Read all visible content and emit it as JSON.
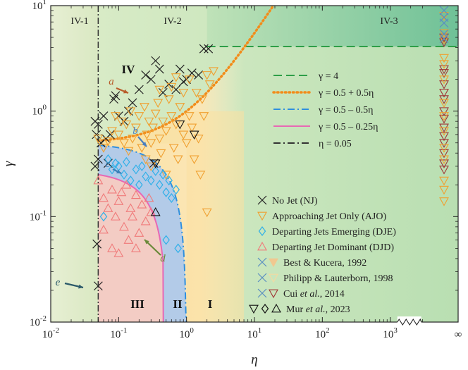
{
  "chart_data": {
    "type": "scatter",
    "xlabel": "η",
    "ylabel": "γ",
    "xscale": "log",
    "yscale": "log",
    "xlim": [
      0.01,
      10000
    ],
    "ylim": [
      0.01,
      10
    ],
    "x_tick_labels": [
      "10^-2",
      "10^-1",
      "10^0",
      "10^1",
      "10^2",
      "10^3",
      "∞"
    ],
    "y_tick_labels": [
      "10^-2",
      "10^-1",
      "10^0",
      "10^1"
    ],
    "axis_break": "between 10^3 and ∞",
    "grid": false,
    "legend_placement": "right",
    "regions": [
      {
        "label": "IV-1",
        "color": "#dfe8c8"
      },
      {
        "label": "IV-2",
        "color": "#d6e9c2"
      },
      {
        "label": "IV-3",
        "color": "#7fc79a"
      },
      {
        "label": "IV",
        "color": "#f7e3a8"
      },
      {
        "label": "III",
        "color": "#f3c9c2"
      },
      {
        "label": "II",
        "color": "#aec8e6"
      },
      {
        "label": "I",
        "color": "#fbe3a6"
      }
    ],
    "boundary_lines": [
      {
        "name": "γ = 4",
        "color": "#2e9e48",
        "style": "dashed"
      },
      {
        "name": "γ = 0.5 + 0.5η",
        "color": "#f28c1a",
        "style": "dotted"
      },
      {
        "name": "γ = 0.5 – 0.5η",
        "color": "#2f8fde",
        "style": "dashdot"
      },
      {
        "name": "γ = 0.5 – 0.25η",
        "color": "#e868b4",
        "style": "solid"
      },
      {
        "name": "η = 0.05",
        "color": "#333333",
        "style": "dashdot"
      }
    ],
    "category_legend": [
      {
        "name": "No Jet (NJ)",
        "marker": "x",
        "color": "#222222"
      },
      {
        "name": "Approaching Jet Only (AJO)",
        "marker": "triangle-down",
        "color": "#f0a030"
      },
      {
        "name": "Departing Jets Emerging (DJE)",
        "marker": "diamond",
        "color": "#30b0e8"
      },
      {
        "name": "Departing Jet Dominant (DJD)",
        "marker": "triangle-up",
        "color": "#f07a7a"
      }
    ],
    "source_legend": [
      {
        "name": "Best & Kucera, 1992",
        "markers": [
          "x",
          "triangle-down-filled"
        ],
        "colors": [
          "#5b8fc0",
          "#f0c890"
        ]
      },
      {
        "name": "Philipp & Lauterborn, 1998",
        "markers": [
          "x",
          "triangle-down"
        ],
        "colors": [
          "#5b8fc0",
          "#f5d9a0"
        ]
      },
      {
        "name": "Cui et al., 2014",
        "markers": [
          "x",
          "triangle-down"
        ],
        "colors": [
          "#5b8fc0",
          "#a03535"
        ]
      },
      {
        "name": "Mur et al., 2023",
        "markers": [
          "triangle-down",
          "diamond",
          "triangle-up"
        ],
        "colors": [
          "#111111",
          "#111111",
          "#111111"
        ]
      }
    ],
    "annotations": [
      "a",
      "b",
      "c",
      "d",
      "e"
    ],
    "region_labels": [
      "IV-1",
      "IV-2",
      "IV-3",
      "IV",
      "III",
      "II",
      "I"
    ],
    "series": [
      {
        "name": "No Jet (NJ)",
        "points": [
          [
            0.045,
            0.8
          ],
          [
            0.047,
            0.6
          ],
          [
            0.05,
            0.75
          ],
          [
            0.055,
            0.5
          ],
          [
            0.06,
            0.9
          ],
          [
            0.065,
            0.55
          ],
          [
            0.075,
            0.6
          ],
          [
            0.085,
            1.3
          ],
          [
            0.09,
            1.4
          ],
          [
            0.1,
            0.9
          ],
          [
            0.12,
            0.8
          ],
          [
            0.14,
            1.0
          ],
          [
            0.16,
            1.2
          ],
          [
            0.2,
            1.6
          ],
          [
            0.25,
            2.2
          ],
          [
            0.3,
            2.0
          ],
          [
            0.35,
            3.0
          ],
          [
            0.4,
            2.5
          ],
          [
            0.45,
            1.5
          ],
          [
            0.55,
            1.8
          ],
          [
            0.7,
            1.6
          ],
          [
            0.8,
            2.5
          ],
          [
            1.0,
            2.0
          ],
          [
            1.2,
            2.3
          ],
          [
            1.5,
            2.2
          ],
          [
            1.8,
            3.9
          ],
          [
            2.1,
            3.9
          ],
          [
            0.9,
            1.9
          ],
          [
            0.33,
            0.32
          ],
          [
            0.045,
            0.3
          ],
          [
            0.048,
            0.055
          ],
          [
            0.05,
            0.022
          ],
          [
            0.05,
            0.35
          ],
          [
            0.07,
            0.32
          ]
        ]
      },
      {
        "name": "Approaching Jet Only (AJO)",
        "points": [
          [
            0.05,
            0.55
          ],
          [
            0.06,
            0.45
          ],
          [
            0.07,
            0.52
          ],
          [
            0.08,
            0.65
          ],
          [
            0.09,
            0.9
          ],
          [
            0.1,
            0.6
          ],
          [
            0.11,
            0.8
          ],
          [
            0.12,
            0.5
          ],
          [
            0.13,
            0.75
          ],
          [
            0.14,
            0.42
          ],
          [
            0.15,
            1.0
          ],
          [
            0.16,
            0.55
          ],
          [
            0.18,
            0.7
          ],
          [
            0.2,
            0.9
          ],
          [
            0.22,
            0.45
          ],
          [
            0.24,
            1.1
          ],
          [
            0.26,
            0.6
          ],
          [
            0.28,
            0.8
          ],
          [
            0.3,
            0.5
          ],
          [
            0.32,
            0.7
          ],
          [
            0.35,
            0.95
          ],
          [
            0.38,
            1.2
          ],
          [
            0.4,
            0.55
          ],
          [
            0.42,
            0.4
          ],
          [
            0.45,
            0.8
          ],
          [
            0.5,
            0.65
          ],
          [
            0.55,
            1.3
          ],
          [
            0.6,
            0.9
          ],
          [
            0.65,
            0.45
          ],
          [
            0.7,
            0.75
          ],
          [
            0.75,
            0.35
          ],
          [
            0.8,
            1.1
          ],
          [
            0.9,
            0.6
          ],
          [
            1.0,
            0.5
          ],
          [
            1.1,
            0.9
          ],
          [
            1.2,
            0.7
          ],
          [
            1.3,
            0.35
          ],
          [
            1.4,
            1.5
          ],
          [
            1.5,
            0.55
          ],
          [
            1.6,
            0.25
          ],
          [
            1.7,
            1.3
          ],
          [
            1.8,
            0.9
          ],
          [
            2.0,
            2.2
          ],
          [
            2.2,
            1.8
          ],
          [
            2.5,
            2.4
          ],
          [
            2.0,
            0.11
          ],
          [
            0.3,
            0.3
          ],
          [
            0.5,
            0.25
          ],
          [
            0.6,
            1.7
          ],
          [
            0.4,
            1.6
          ],
          [
            0.25,
            0.35
          ],
          [
            0.9,
            1.5
          ],
          [
            1.1,
            2.0
          ],
          [
            0.7,
            2.1
          ]
        ]
      },
      {
        "name": "Departing Jets Emerging (DJE)",
        "points": [
          [
            0.07,
            0.35
          ],
          [
            0.08,
            0.28
          ],
          [
            0.09,
            0.32
          ],
          [
            0.1,
            0.3
          ],
          [
            0.12,
            0.25
          ],
          [
            0.13,
            0.33
          ],
          [
            0.15,
            0.22
          ],
          [
            0.18,
            0.28
          ],
          [
            0.2,
            0.2
          ],
          [
            0.22,
            0.3
          ],
          [
            0.25,
            0.24
          ],
          [
            0.3,
            0.22
          ],
          [
            0.35,
            0.27
          ],
          [
            0.4,
            0.2
          ],
          [
            0.45,
            0.25
          ],
          [
            0.5,
            0.17
          ],
          [
            0.55,
            0.22
          ],
          [
            0.6,
            0.15
          ],
          [
            0.7,
            0.18
          ],
          [
            0.5,
            0.06
          ],
          [
            0.75,
            0.05
          ],
          [
            0.06,
            0.1
          ]
        ]
      },
      {
        "name": "Departing Jet Dominant (DJD)",
        "points": [
          [
            0.05,
            0.22
          ],
          [
            0.06,
            0.15
          ],
          [
            0.07,
            0.12
          ],
          [
            0.08,
            0.18
          ],
          [
            0.09,
            0.1
          ],
          [
            0.1,
            0.14
          ],
          [
            0.12,
            0.08
          ],
          [
            0.13,
            0.2
          ],
          [
            0.14,
            0.06
          ],
          [
            0.15,
            0.12
          ],
          [
            0.16,
            0.1
          ],
          [
            0.18,
            0.16
          ],
          [
            0.2,
            0.07
          ],
          [
            0.22,
            0.13
          ],
          [
            0.25,
            0.09
          ],
          [
            0.28,
            0.15
          ],
          [
            0.3,
            0.11
          ],
          [
            0.08,
            0.05
          ],
          [
            0.1,
            0.045
          ],
          [
            0.06,
            0.075
          ],
          [
            0.11,
            0.17
          ],
          [
            0.18,
            0.05
          ]
        ]
      },
      {
        "name": "Cui et al., 2014",
        "points": [
          [
            10000,
            5.0
          ],
          [
            10000,
            4.5
          ],
          [
            10000,
            2.5
          ],
          [
            10000,
            2.3
          ],
          [
            10000,
            1.8
          ],
          [
            10000,
            1.5
          ],
          [
            10000,
            1.3
          ],
          [
            10000,
            1.0
          ],
          [
            10000,
            0.85
          ],
          [
            10000,
            0.7
          ],
          [
            10000,
            0.58
          ],
          [
            10000,
            0.5
          ],
          [
            10000,
            0.4
          ],
          [
            10000,
            0.32
          ],
          [
            10000,
            0.28
          ]
        ]
      },
      {
        "name": "Philipp & Lauterborn, 1998",
        "points": [
          [
            10000,
            8.0
          ],
          [
            10000,
            5.5
          ],
          [
            10000,
            4.8
          ],
          [
            10000,
            3.2
          ],
          [
            10000,
            2.8
          ],
          [
            10000,
            2.0
          ],
          [
            10000,
            1.2
          ],
          [
            10000,
            0.9
          ],
          [
            10000,
            0.65
          ],
          [
            10000,
            0.45
          ],
          [
            10000,
            0.35
          ],
          [
            10000,
            0.22
          ],
          [
            10000,
            0.18
          ],
          [
            10000,
            0.14
          ]
        ]
      }
    ]
  }
}
